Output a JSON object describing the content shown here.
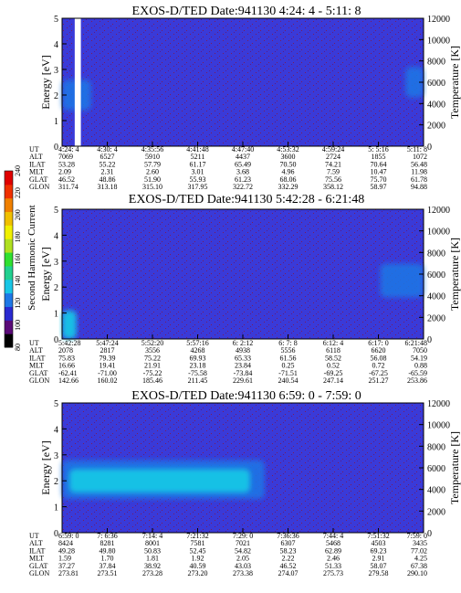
{
  "colors": {
    "background_blue": "#3a3ad8",
    "speckle": "#7a1e5a",
    "gap": "#ffffff",
    "feature_cyan": "#19c6e6",
    "feature_mid": "#1e78e6"
  },
  "axes": {
    "ylabel": "Energy [eV]",
    "ylabel_right": "Temperature [K]",
    "y_ticks": [
      "0",
      "1",
      "2",
      "3",
      "4",
      "5"
    ],
    "y_right_ticks": [
      "0",
      "2000",
      "4000",
      "6000",
      "8000",
      "10000",
      "12000"
    ],
    "ylim": [
      0,
      5
    ],
    "ylim_right": [
      0,
      12000
    ]
  },
  "colorbar": {
    "label": "Second Harmonic Current",
    "ticks": [
      "80",
      "100",
      "120",
      "140",
      "160",
      "180",
      "200",
      "220",
      "240"
    ],
    "range": [
      80,
      240
    ],
    "colors": [
      "#000000",
      "#5a0a78",
      "#2a2ad0",
      "#1e78e6",
      "#19c6e6",
      "#22d090",
      "#30e030",
      "#b0e020",
      "#f0f000",
      "#f0c000",
      "#f08000",
      "#f03000",
      "#e00000"
    ]
  },
  "row_labels": [
    "UT",
    "ALT",
    "ILAT",
    "MLT",
    "GLAT",
    "GLON"
  ],
  "chart_data": [
    {
      "type": "heatmap",
      "title": "EXOS-D/TED   Date:941130  4:24: 4 - 5:11: 8",
      "table": {
        "UT": [
          "4:24: 4",
          "4:30: 4",
          "4:35:56",
          "4:41:48",
          "4:47:40",
          "4:53:32",
          "4:59:24",
          "5: 5:16",
          "5:11: 8"
        ],
        "ALT": [
          "7069",
          "6527",
          "5910",
          "5211",
          "4437",
          "3600",
          "2724",
          "1855",
          "1072"
        ],
        "ILAT": [
          "53.28",
          "55.22",
          "57.79",
          "61.17",
          "65.49",
          "70.50",
          "74.21",
          "70.64",
          "56.48"
        ],
        "MLT": [
          "2.09",
          "2.31",
          "2.60",
          "3.01",
          "3.68",
          "4.96",
          "7.59",
          "10.47",
          "11.98"
        ],
        "GLAT": [
          "46.52",
          "48.86",
          "51.90",
          "55.93",
          "61.23",
          "68.06",
          "75.56",
          "75.70",
          "61.78"
        ],
        "GLON": [
          "311.74",
          "313.18",
          "315.10",
          "317.95",
          "322.72",
          "332.29",
          "358.12",
          "58.97",
          "94.88"
        ]
      },
      "gaps": [
        [
          0.035,
          0.052
        ]
      ],
      "features": [
        {
          "x0": 0.0,
          "x1": 0.08,
          "e0": 1.4,
          "e1": 2.6,
          "level": "mid"
        },
        {
          "x0": 0.95,
          "x1": 1.0,
          "e0": 1.9,
          "e1": 3.1,
          "level": "mid"
        }
      ]
    },
    {
      "type": "heatmap",
      "title": "EXOS-D/TED   Date:941130  5:42:28 - 6:21:48",
      "table": {
        "UT": [
          "5:42:28",
          "5:47:24",
          "5:52:20",
          "5:57:16",
          "6: 2:12",
          "6: 7: 8",
          "6:12: 4",
          "6:17: 0",
          "6:21:48"
        ],
        "ALT": [
          "2078",
          "2817",
          "3556",
          "4268",
          "4938",
          "5556",
          "6118",
          "6620",
          "7050"
        ],
        "ILAT": [
          "75.83",
          "79.39",
          "75.22",
          "69.93",
          "65.33",
          "61.56",
          "58.52",
          "56.08",
          "54.19"
        ],
        "MLT": [
          "16.66",
          "19.41",
          "21.91",
          "23.18",
          "23.84",
          "0.25",
          "0.52",
          "0.72",
          "0.88"
        ],
        "GLAT": [
          "-62.41",
          "-71.00",
          "-75.22",
          "-75.58",
          "-73.84",
          "-71.51",
          "-69.25",
          "-67.25",
          "-65.59"
        ],
        "GLON": [
          "142.66",
          "160.02",
          "185.46",
          "211.45",
          "229.61",
          "240.54",
          "247.14",
          "251.27",
          "253.86"
        ]
      },
      "gaps": [],
      "features": [
        {
          "x0": 0.0,
          "x1": 0.04,
          "e0": 0.0,
          "e1": 1.1,
          "level": "high"
        },
        {
          "x0": 0.88,
          "x1": 1.0,
          "e0": 1.6,
          "e1": 2.9,
          "level": "mid"
        }
      ]
    },
    {
      "type": "heatmap",
      "title": "EXOS-D/TED   Date:941130  6:59: 0 - 7:59: 0",
      "table": {
        "UT": [
          "6:59: 0",
          "7: 6:36",
          "7:14: 4",
          "7:21:32",
          "7:29: 0",
          "7:36:36",
          "7:44: 4",
          "7:51:32",
          "7:59: 0"
        ],
        "ALT": [
          "8424",
          "8281",
          "8001",
          "7581",
          "7021",
          "6307",
          "5468",
          "4503",
          "3435"
        ],
        "ILAT": [
          "49.28",
          "49.80",
          "50.83",
          "52.45",
          "54.82",
          "58.23",
          "62.89",
          "69.23",
          "77.02"
        ],
        "MLT": [
          "1.59",
          "1.70",
          "1.81",
          "1.92",
          "2.05",
          "2.22",
          "2.46",
          "2.91",
          "4.25"
        ],
        "GLAT": [
          "37.27",
          "37.84",
          "38.92",
          "40.59",
          "43.03",
          "46.52",
          "51.33",
          "58.07",
          "67.38"
        ],
        "GLON": [
          "273.81",
          "273.51",
          "273.28",
          "273.20",
          "273.38",
          "274.07",
          "275.73",
          "279.58",
          "290.10"
        ]
      },
      "gaps": [],
      "features": [
        {
          "x0": 0.0,
          "x1": 0.56,
          "e0": 1.3,
          "e1": 2.8,
          "level": "mid"
        },
        {
          "x0": 0.02,
          "x1": 0.52,
          "e0": 1.55,
          "e1": 2.45,
          "level": "high"
        }
      ]
    }
  ]
}
